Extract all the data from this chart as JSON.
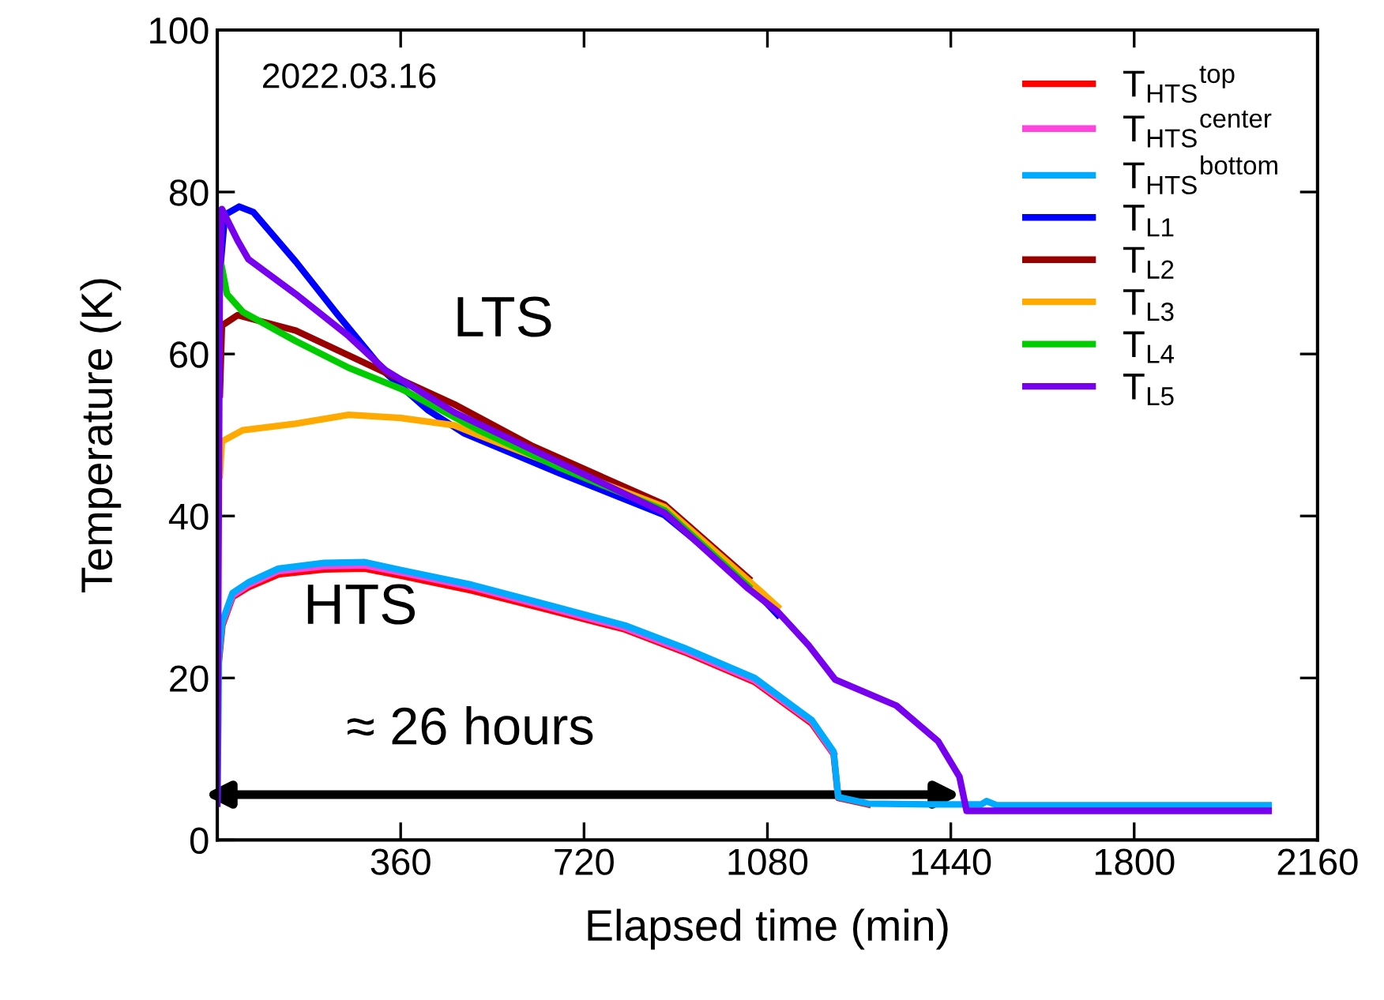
{
  "chart_data": {
    "type": "line",
    "xlabel": "Elapsed time (min)",
    "ylabel": "Temperature (K)",
    "xlim": [
      0,
      2160
    ],
    "xticks": [
      {
        "value": 0,
        "label": null
      },
      360,
      720,
      1080,
      1440,
      1800,
      2160
    ],
    "ylim": [
      0,
      100
    ],
    "yticks": [
      0,
      20,
      40,
      60,
      80,
      100
    ],
    "grid": false,
    "legend": "top right",
    "line_style": "solid",
    "marker": "none",
    "annotations": [
      "2022.03.16",
      "LTS",
      "HTS",
      "≈ 26 hours"
    ],
    "series": [
      {
        "name": "T$_{HTS}$$^{top}$",
        "color": "#ff0000",
        "x": [
          3,
          10,
          30,
          61,
          120,
          210,
          290,
          363,
          500,
          639,
          800,
          917,
          1055,
          1167,
          1210,
          1219,
          1277
        ],
        "values": [
          22,
          26.5,
          30,
          31.2,
          32.8,
          33.4,
          33.5,
          32.6,
          30.8,
          28.6,
          26,
          23.2,
          19.5,
          14.4,
          10.6,
          5.2,
          4.4
        ]
      },
      {
        "name": "T$_{HTS}$$^{center}$",
        "color": "#ff44dd",
        "x": [
          10,
          30,
          61,
          120,
          210,
          290,
          363,
          500,
          639,
          800,
          917,
          1055,
          1167,
          1210
        ],
        "values": [
          26.8,
          30.2,
          31.5,
          33.2,
          33.8,
          33.9,
          33.0,
          31.2,
          28.9,
          26.2,
          23.4,
          19.7,
          14.6,
          10.7
        ]
      },
      {
        "name": "T$_{HTS}$$^{bottom}$",
        "color": "#00aaff",
        "x": [
          0,
          2,
          3,
          10,
          30,
          61,
          120,
          210,
          290,
          363,
          500,
          639,
          800,
          917,
          1055,
          1167,
          1210,
          1219,
          1277,
          1400,
          1500,
          1510,
          1530,
          1700,
          2064
        ],
        "values": [
          4.5,
          15,
          22.6,
          27,
          30.5,
          31.8,
          33.5,
          34.2,
          34.3,
          33.3,
          31.5,
          29.2,
          26.5,
          23.7,
          20.0,
          14.8,
          10.9,
          5.3,
          4.5,
          4.4,
          4.4,
          4.8,
          4.3,
          4.3,
          4.3
        ]
      },
      {
        "name": "T$_{L1}$",
        "color": "#0000ff",
        "x": [
          5,
          15,
          43,
          71,
          154,
          237,
          330,
          413,
          485,
          671,
          878,
          1043,
          1100
        ],
        "values": [
          70,
          77.2,
          78.2,
          77.5,
          71.4,
          64.8,
          57.7,
          53.1,
          50.2,
          45.3,
          40.1,
          31.6,
          27.8
        ]
      },
      {
        "name": "T$_{L2}$",
        "color": "#990000",
        "x": [
          5,
          9,
          40,
          154,
          330,
          465,
          620,
          878,
          1043
        ],
        "values": [
          55,
          63.5,
          64.8,
          62.9,
          57.7,
          53.8,
          48.6,
          41.4,
          32.3
        ]
      },
      {
        "name": "T$_{L3}$",
        "color": "#ffaa00",
        "x": [
          5,
          9,
          50,
          154,
          258,
          361,
          465,
          516,
          878,
          1074,
          1100
        ],
        "values": [
          45,
          49.2,
          50.6,
          51.4,
          52.5,
          52.1,
          51.2,
          49.9,
          41.1,
          30.3,
          28.8
        ]
      },
      {
        "name": "T$_{L4}$",
        "color": "#00cc00",
        "x": [
          9,
          19,
          50,
          154,
          258,
          361,
          516,
          671,
          878,
          1043
        ],
        "values": [
          70.7,
          67.4,
          65.2,
          61.6,
          58.3,
          55.7,
          50.5,
          46,
          40.7,
          31.3
        ]
      },
      {
        "name": "T$_{L5}$",
        "color": "#7700ee",
        "x": [
          0,
          5,
          9,
          40,
          61,
          154,
          258,
          330,
          465,
          671,
          878,
          1043,
          1100,
          1160,
          1213,
          1333,
          1415,
          1457,
          1471,
          1500,
          2064
        ],
        "values": [
          4.5,
          70,
          77.9,
          74,
          71.7,
          67.4,
          62.2,
          58,
          52.8,
          46.6,
          40.4,
          31.0,
          28.2,
          24.1,
          19.8,
          16.6,
          12.2,
          7.8,
          3.6,
          3.6,
          3.6
        ]
      }
    ]
  }
}
